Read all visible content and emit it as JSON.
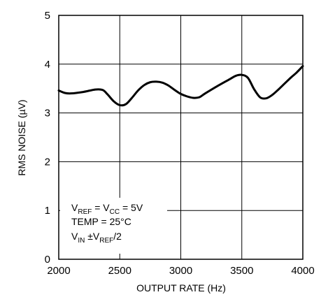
{
  "chart_data": {
    "type": "line",
    "title": "",
    "xlabel": "OUTPUT RATE (Hz)",
    "ylabel": "RMS NOISE (µV)",
    "xlim": [
      2000,
      4000
    ],
    "ylim": [
      0,
      5
    ],
    "xticks": [
      2000,
      2500,
      3000,
      3500,
      4000
    ],
    "yticks": [
      0,
      1,
      2,
      3,
      4,
      5
    ],
    "grid": true,
    "line_color": "#000000",
    "series": [
      {
        "x": [
          2000,
          2050,
          2100,
          2200,
          2300,
          2360,
          2400,
          2450,
          2500,
          2550,
          2600,
          2650,
          2700,
          2750,
          2800,
          2850,
          2900,
          2950,
          3000,
          3050,
          3100,
          3150,
          3200,
          3300,
          3400,
          3450,
          3500,
          3550,
          3600,
          3650,
          3700,
          3750,
          3800,
          3850,
          3900,
          3950,
          4000
        ],
        "y": [
          3.46,
          3.41,
          3.4,
          3.43,
          3.48,
          3.47,
          3.38,
          3.24,
          3.16,
          3.18,
          3.31,
          3.46,
          3.57,
          3.63,
          3.64,
          3.62,
          3.56,
          3.47,
          3.39,
          3.34,
          3.31,
          3.32,
          3.4,
          3.55,
          3.69,
          3.76,
          3.78,
          3.72,
          3.49,
          3.32,
          3.3,
          3.37,
          3.48,
          3.6,
          3.72,
          3.83,
          3.96
        ]
      }
    ],
    "annotations": {
      "vref": {
        "v1": "V",
        "s1": "REF",
        "m": " = V",
        "s2": "CC",
        "e": " = 5V"
      },
      "temp": "TEMP = 25°C",
      "vin": {
        "v1": "V",
        "s1": "IN",
        "m": " ±V",
        "s2": "REF",
        "e": "/2"
      }
    }
  }
}
